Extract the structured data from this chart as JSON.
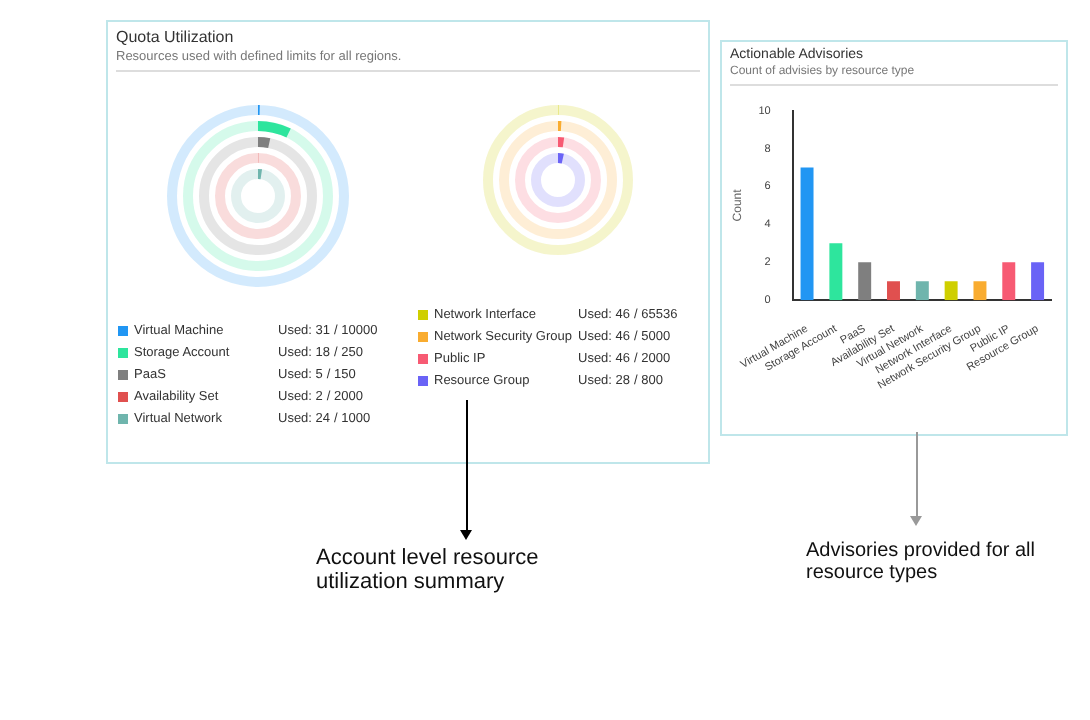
{
  "chart_data": [
    {
      "type": "other",
      "title": "Quota Utilization",
      "subtitle": "Resources used with defined limits for all regions.",
      "categories": [
        "Virtual Machine",
        "Storage Account",
        "PaaS",
        "Availability Set",
        "Virtual Network"
      ],
      "colors": [
        "#2196f3",
        "#2ee59d",
        "#7f7f7f",
        "#e0504f",
        "#6fb5ad"
      ],
      "series": [
        {
          "values": [
            31,
            18,
            5,
            2,
            24
          ],
          "value_labels": [
            "Used: 31",
            "Used: 18",
            "Used: 5",
            "Used: 2",
            "Used: 24"
          ]
        },
        {
          "values": [
            10000,
            250,
            150,
            2000,
            1000
          ],
          "value_labels": [
            "/ 10000",
            "/ 250",
            "/ 150",
            "/ 2000",
            "/ 1000"
          ]
        }
      ],
      "annotations": [
        "Account level resource utilization summary"
      ]
    },
    {
      "type": "other",
      "categories": [
        "Network Interface",
        "Network Security Group",
        "Public IP",
        "Resource Group"
      ],
      "colors": [
        "#cfcf00",
        "#f9ac30",
        "#f75a73",
        "#6a63f6"
      ],
      "series": [
        {
          "values": [
            46,
            46,
            46,
            28
          ],
          "value_labels": [
            "Used: 46",
            "Used: 46",
            "Used: 46",
            "Used: 28"
          ]
        },
        {
          "values": [
            65536,
            5000,
            2000,
            800
          ],
          "value_labels": [
            "/ 65536",
            "/ 5000",
            "/ 2000",
            "/ 800"
          ]
        }
      ]
    },
    {
      "type": "bar",
      "title": "Actionable Advisories",
      "subtitle": "Count of advisies by resource type",
      "ylabel": "Count",
      "categories": [
        "Virtual Machine",
        "Storage Account",
        "PaaS",
        "Availability Set",
        "Virtual Network",
        "Network Interface",
        "Network Security Group",
        "Public IP",
        "Resource Group"
      ],
      "values": [
        7,
        3,
        2,
        1,
        1,
        1,
        1,
        2,
        2
      ],
      "colors": [
        "#2196f3",
        "#2ee59d",
        "#7f7f7f",
        "#e0504f",
        "#6fb5ad",
        "#cfcf00",
        "#f9ac30",
        "#f75a73",
        "#6a63f6"
      ],
      "ylim": [
        0,
        10
      ],
      "yticks": [
        0,
        2,
        4,
        6,
        8,
        10
      ],
      "annotations": [
        "Advisories provided for all resource types"
      ]
    }
  ]
}
